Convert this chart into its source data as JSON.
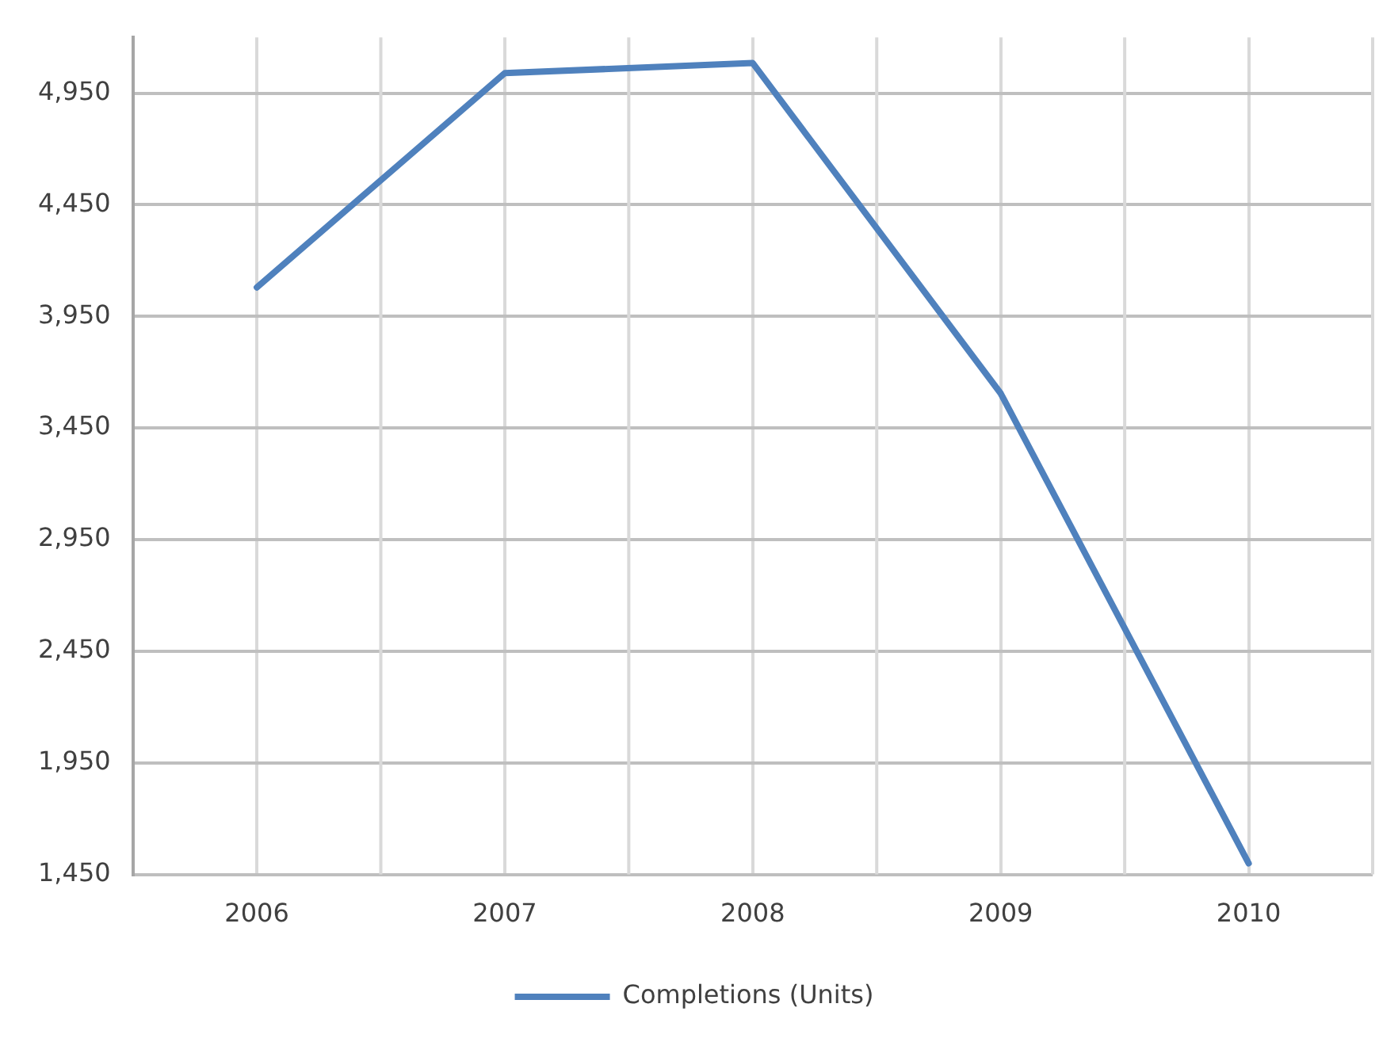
{
  "chart_data": {
    "type": "line",
    "categories": [
      "2006",
      "2007",
      "2008",
      "2009",
      "2010"
    ],
    "series": [
      {
        "name": "Completions (Units)",
        "color": "#4f81bd",
        "values": [
          4080,
          5040,
          5085,
          3605,
          1500
        ]
      }
    ],
    "ylim": [
      1450,
      5200
    ],
    "yticks": [
      {
        "value": 1450,
        "label": "1,450"
      },
      {
        "value": 1950,
        "label": "1,950"
      },
      {
        "value": 2450,
        "label": "2,450"
      },
      {
        "value": 2950,
        "label": "2,950"
      },
      {
        "value": 3450,
        "label": "3,450"
      },
      {
        "value": 3950,
        "label": "3,950"
      },
      {
        "value": 4450,
        "label": "4,450"
      },
      {
        "value": 4950,
        "label": "4,950"
      }
    ],
    "grid": true,
    "legend": "bottom",
    "marker": "none"
  }
}
